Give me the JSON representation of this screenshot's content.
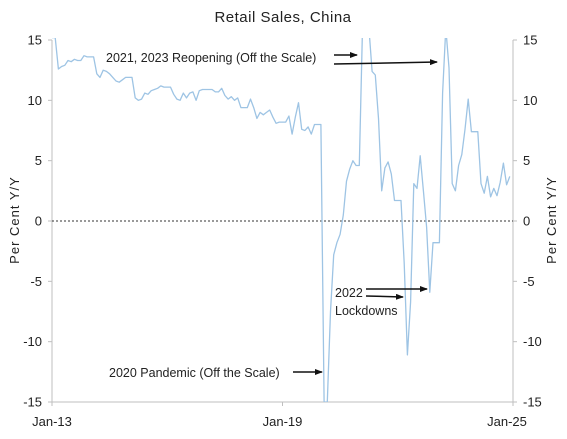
{
  "chart_data": {
    "type": "line",
    "title": "Retail Sales, China",
    "ylabel_left": "Per Cent Y/Y",
    "ylabel_right": "Per Cent Y/Y",
    "xlabel": "",
    "ylim": [
      -15,
      15
    ],
    "yticks": [
      -15,
      -10,
      -5,
      0,
      5,
      10,
      15
    ],
    "ytick_labels": [
      "-15",
      "-10",
      "-5",
      "0",
      "5",
      "10",
      "15"
    ],
    "x_axis_labels": [
      "Jan-13",
      "Jan-19",
      "Jan-25"
    ],
    "x_range": [
      "2013-01",
      "2025-01"
    ],
    "zero_line": "dotted",
    "grid": false,
    "legend": "none",
    "series_color": "#9ec4e4",
    "series": [
      {
        "x": [
          "2013-01",
          "2013-02",
          "2013-03",
          "2013-04",
          "2013-05",
          "2013-06",
          "2013-07",
          "2013-08",
          "2013-09",
          "2013-10",
          "2013-11",
          "2013-12",
          "2014-01",
          "2014-02",
          "2014-03",
          "2014-04",
          "2014-05",
          "2014-06",
          "2014-07",
          "2014-08",
          "2014-09",
          "2014-10",
          "2014-11",
          "2014-12",
          "2015-01",
          "2015-02",
          "2015-03",
          "2015-04",
          "2015-05",
          "2015-06",
          "2015-07",
          "2015-08",
          "2015-09",
          "2015-10",
          "2015-11",
          "2015-12",
          "2016-01",
          "2016-02",
          "2016-03",
          "2016-04",
          "2016-05",
          "2016-06",
          "2016-07",
          "2016-08",
          "2016-09",
          "2016-10",
          "2016-11",
          "2016-12",
          "2017-01",
          "2017-02",
          "2017-03",
          "2017-04",
          "2017-05",
          "2017-06",
          "2017-07",
          "2017-08",
          "2017-09",
          "2017-10",
          "2017-11",
          "2017-12",
          "2018-01",
          "2018-02",
          "2018-03",
          "2018-04",
          "2018-05",
          "2018-06",
          "2018-07",
          "2018-08",
          "2018-09",
          "2018-10",
          "2018-11",
          "2018-12",
          "2019-01",
          "2019-02",
          "2019-03",
          "2019-04",
          "2019-05",
          "2019-06",
          "2019-07",
          "2019-08",
          "2019-09",
          "2019-10",
          "2019-11",
          "2019-12",
          "2020-01",
          "2020-02",
          "2020-03",
          "2020-04",
          "2020-05",
          "2020-06",
          "2020-07",
          "2020-08",
          "2020-09",
          "2020-10",
          "2020-11",
          "2020-12",
          "2021-01",
          "2021-02",
          "2021-03",
          "2021-04",
          "2021-05",
          "2021-06",
          "2021-07",
          "2021-08",
          "2021-09",
          "2021-10",
          "2021-11",
          "2021-12",
          "2022-01",
          "2022-02",
          "2022-03",
          "2022-04",
          "2022-05",
          "2022-06",
          "2022-07",
          "2022-08",
          "2022-09",
          "2022-10",
          "2022-11",
          "2022-12",
          "2023-01",
          "2023-02",
          "2023-03",
          "2023-04",
          "2023-05",
          "2023-06",
          "2023-07",
          "2023-08",
          "2023-09",
          "2023-10",
          "2023-11",
          "2023-12",
          "2024-01",
          "2024-02",
          "2024-03",
          "2024-04",
          "2024-05",
          "2024-06",
          "2024-07",
          "2024-08",
          "2024-09",
          "2024-10",
          "2024-11",
          "2024-12"
        ],
        "values": [
          15.2,
          15.2,
          12.6,
          12.8,
          12.9,
          13.3,
          13.2,
          13.4,
          13.3,
          13.3,
          13.7,
          13.6,
          13.6,
          13.6,
          12.2,
          11.9,
          12.5,
          12.4,
          12.2,
          11.9,
          11.6,
          11.5,
          11.7,
          11.9,
          11.9,
          11.9,
          10.2,
          10.0,
          10.1,
          10.6,
          10.5,
          10.8,
          10.9,
          11.0,
          11.2,
          11.1,
          11.1,
          11.1,
          10.5,
          10.1,
          10.0,
          10.6,
          10.2,
          10.6,
          10.7,
          10.0,
          10.8,
          10.9,
          10.9,
          10.9,
          10.9,
          10.7,
          10.7,
          11.0,
          10.4,
          10.1,
          10.3,
          10.0,
          10.2,
          9.4,
          9.4,
          9.4,
          10.1,
          9.4,
          8.5,
          9.0,
          8.8,
          9.0,
          9.2,
          8.6,
          8.1,
          8.2,
          8.2,
          8.2,
          8.7,
          7.2,
          8.6,
          9.8,
          7.6,
          7.5,
          7.8,
          7.2,
          8.0,
          8.0,
          8.0,
          -15.0,
          -15.0,
          -7.5,
          -2.8,
          -1.8,
          -1.1,
          0.5,
          3.3,
          4.3,
          5.0,
          4.6,
          4.6,
          16.0,
          16.0,
          16.0,
          12.4,
          12.1,
          8.5,
          2.5,
          4.4,
          4.9,
          3.9,
          1.7,
          1.7,
          1.7,
          -3.5,
          -11.1,
          -6.7,
          3.1,
          2.7,
          5.4,
          2.5,
          -0.5,
          -5.9,
          -1.8,
          -1.8,
          -1.8,
          10.6,
          16.0,
          12.7,
          3.1,
          2.5,
          4.6,
          5.5,
          7.6,
          10.1,
          7.4,
          7.4,
          7.4,
          3.1,
          2.3,
          3.7,
          2.0,
          2.7,
          2.1,
          3.2,
          4.8,
          3.0,
          3.7
        ]
      }
    ],
    "annotations": [
      {
        "text": "2021, 2023 Reopening (Off the Scale)"
      },
      {
        "text": "2022"
      },
      {
        "text": "Lockdowns"
      },
      {
        "text": "2020 Pandemic (Off the Scale)"
      }
    ]
  }
}
